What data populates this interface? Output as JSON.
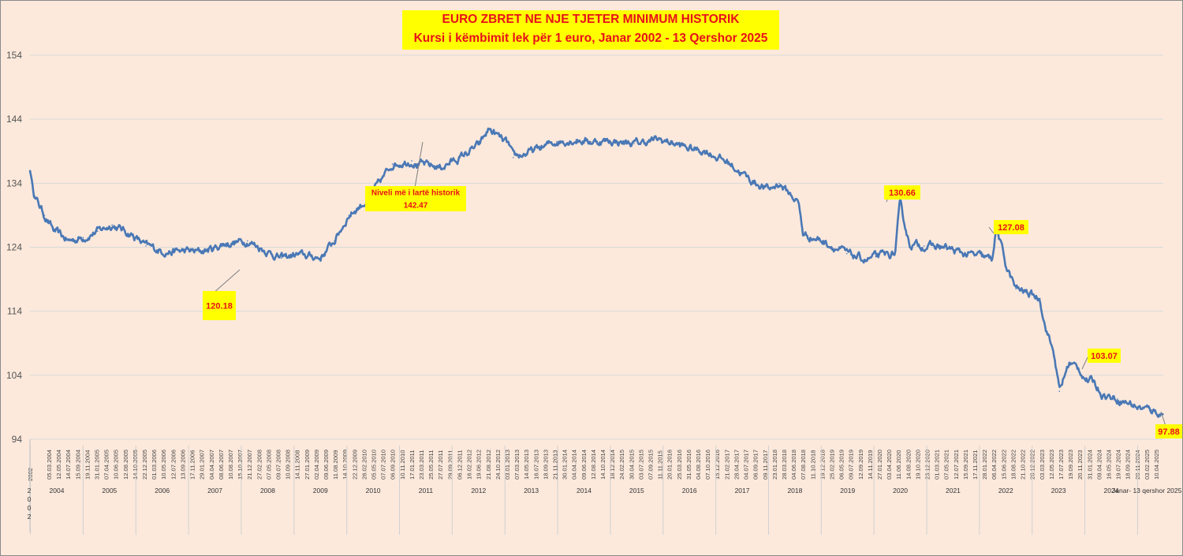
{
  "title": {
    "line1": "EURO ZBRET NE NJE TJETER MINIMUM HISTORIK",
    "line2": "Kursi i këmbimit lek për 1 euro, Janar 2002 - 13 Qershor 2025"
  },
  "colors": {
    "background": "#fce9dc",
    "line": "#4a78b5",
    "grid": "#d9d9d9",
    "label_box": "#ffff00",
    "label_text": "#e8101a"
  },
  "chart_data": {
    "type": "line",
    "title": "EURO ZBRET NE NJE TJETER MINIMUM HISTORIK",
    "subtitle": "Kursi i këmbimit lek për 1 euro, Janar 2002 - 13 Qershor 2025",
    "xlabel": "",
    "ylabel": "",
    "ylim": [
      94,
      154
    ],
    "yticks": [
      94,
      104,
      114,
      124,
      134,
      144,
      154
    ],
    "grid": "horizontal",
    "legend": "none",
    "series": [
      {
        "x": [
          2002.0,
          2002.1,
          2002.3,
          2002.5,
          2002.8,
          2003.1,
          2003.4,
          2003.7,
          2004.1,
          2004.4,
          2004.7,
          2004.9,
          2005.2,
          2005.5,
          2005.8,
          2006.0,
          2006.5,
          2007.0,
          2007.2,
          2007.5,
          2007.9,
          2008.0,
          2008.3,
          2008.6,
          2009.0,
          2009.5,
          2009.9,
          2010.0,
          2010.5,
          2010.9,
          2011.3,
          2011.5,
          2011.9,
          2012.0,
          2012.4,
          2012.9,
          2013.3,
          2013.6,
          2014.0,
          2014.5,
          2015.0,
          2015.3,
          2015.6,
          2016.0,
          2016.5,
          2016.9,
          2017.3,
          2017.5,
          2017.9,
          2018.0,
          2018.4,
          2018.9,
          2019.3,
          2019.5,
          2019.9,
          2020.0,
          2020.2,
          2020.5,
          2020.9,
          2021.3,
          2021.7,
          2021.9,
          2022.0,
          2022.2,
          2022.4,
          2022.6,
          2022.9,
          2023.0,
          2023.2,
          2023.3,
          2023.5,
          2023.7,
          2023.9,
          2024.0,
          2024.2,
          2024.5,
          2024.8,
          2025.0,
          2025.2,
          2025.45
        ],
        "values": [
          136.0,
          132.0,
          129.0,
          126.5,
          125.0,
          125.5,
          126.5,
          127.5,
          126.0,
          124.2,
          123.5,
          123.3,
          123.4,
          123.3,
          123.8,
          124.5,
          125.0,
          123.0,
          122.3,
          122.8,
          122.5,
          122.3,
          125.0,
          129.0,
          131.5,
          137.0,
          137.5,
          137.0,
          136.5,
          138.0,
          140.0,
          142.47,
          140.0,
          138.0,
          139.0,
          140.5,
          140.8,
          140.5,
          140.6,
          140.2,
          140.8,
          140.3,
          139.5,
          139.0,
          137.0,
          134.5,
          133.0,
          134.0,
          131.0,
          126.0,
          125.0,
          123.0,
          122.0,
          122.5,
          123.0,
          130.66,
          124.5,
          124.2,
          124.0,
          123.0,
          122.5,
          122.0,
          127.08,
          121.0,
          117.5,
          117.0,
          116.0,
          112.0,
          107.0,
          101.5,
          106.0,
          105.0,
          103.0,
          103.07,
          101.0,
          100.3,
          99.5,
          98.8,
          98.6,
          97.88
        ]
      }
    ],
    "annotations": [
      {
        "label": "120.18",
        "value": 120.18
      },
      {
        "label": "Niveli më i lartë historik",
        "label2": "142.47",
        "value": 142.47
      },
      {
        "label": "130.66",
        "value": 130.66
      },
      {
        "label": "127.08",
        "value": 127.08
      },
      {
        "label": "103.07",
        "value": 103.07
      },
      {
        "label": "97.88",
        "value": 97.88
      }
    ],
    "date_tick_labels": [
      "05.03.2004",
      "12.05.2004",
      "14.07.2004",
      "15.09.2004",
      "19.11.2004",
      "31.01.2005",
      "07.04.2005",
      "10.06.2005",
      "12.08.2005",
      "14.10.2005",
      "22.12.2005",
      "01.03.2006",
      "10.05.2006",
      "12.07.2006",
      "13.09.2006",
      "17.11.2006",
      "29.01.2007",
      "04.04.2007",
      "08.06.2007",
      "10.08.2007",
      "15.10.2007",
      "21.12.2007",
      "27.02.2008",
      "07.05.2008",
      "09.07.2008",
      "10.09.2008",
      "14.11.2008",
      "27.01.2009",
      "02.04.2009",
      "09.06.2009",
      "11.08.2009",
      "14.10.2009",
      "22.12.2009",
      "26.02.2010",
      "05.05.2010",
      "07.07.2010",
      "06.09.2010",
      "10.11.2010",
      "17.01.2011",
      "23.03.2011",
      "25.05.2011",
      "27.07.2011",
      "29.09.2011",
      "06.12.2011",
      "16.02.2012",
      "19.06.2012",
      "21.08.2012",
      "24.10.2012",
      "03.01.2013",
      "07.03.2013",
      "14.05.2013",
      "16.07.2013",
      "18.09.2013",
      "21.11.2013",
      "30.01.2014",
      "04.04.2014",
      "09.06.2014",
      "12.08.2014",
      "14.10.2014",
      "18.12.2014",
      "24.02.2015",
      "30.04.2015",
      "03.07.2015",
      "07.09.2015",
      "11.11.2015",
      "20.01.2016",
      "25.03.2016",
      "31.05.2016",
      "04.08.2016",
      "07.10.2016",
      "15.12.2016",
      "21.02.2017",
      "28.04.2017",
      "04.07.2017",
      "06.09.2017",
      "09.11.2017",
      "23.01.2018",
      "28.03.2018",
      "04.06.2018",
      "07.08.2018",
      "11.10.2018",
      "19.12.2018",
      "25.02.2019",
      "06.05.2019",
      "09.07.2019",
      "12.09.2019",
      "14.11.2019",
      "27.01.2020",
      "03.04.2020",
      "11.06.2020",
      "14.08.2020",
      "19.10.2020",
      "23.12.2020",
      "01.03.2021",
      "07.05.2021",
      "12.07.2021",
      "15.09.2021",
      "17.11.2021",
      "28.01.2022",
      "06.04.2022",
      "15.06.2022",
      "18.08.2022",
      "21.10.2022",
      "28.12.2022",
      "03.03.2023",
      "12.05.2023",
      "17.07.2023",
      "19.09.2023",
      "20.11.2023",
      "31.01.2024",
      "09.04.2024",
      "16.05.2024",
      "19.07.2024",
      "18.09.2024",
      "20.11.2024",
      "03.02.2025",
      "10.04.2025"
    ],
    "year_labels": [
      "2004",
      "2005",
      "2006",
      "2007",
      "2008",
      "2009",
      "2010",
      "2011",
      "2012",
      "2013",
      "2014",
      "2015",
      "2016",
      "2017",
      "2018",
      "2019",
      "2020",
      "2021",
      "2022",
      "2023",
      "2024"
    ],
    "first_date_label": "2002",
    "first_year_label": "2002",
    "last_year_label": "Janar- 13 qershor 2025"
  }
}
